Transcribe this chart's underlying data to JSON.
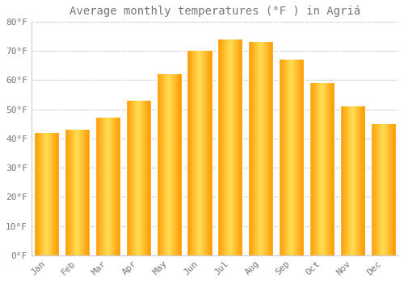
{
  "title": "Average monthly temperatures (°F ) in Agriá",
  "months": [
    "Jan",
    "Feb",
    "Mar",
    "Apr",
    "May",
    "Jun",
    "Jul",
    "Aug",
    "Sep",
    "Oct",
    "Nov",
    "Dec"
  ],
  "values": [
    42,
    43,
    47,
    53,
    62,
    70,
    74,
    73,
    67,
    59,
    51,
    45
  ],
  "bar_color_main": "#FFA500",
  "bar_color_light": "#FFD060",
  "bar_color_mid": "#FFBB30",
  "background_color": "#FFFFFF",
  "grid_color": "#CCCCCC",
  "text_color": "#777777",
  "ylim": [
    0,
    80
  ],
  "yticks": [
    0,
    10,
    20,
    30,
    40,
    50,
    60,
    70,
    80
  ],
  "title_fontsize": 10,
  "tick_fontsize": 8,
  "bar_width": 0.82
}
